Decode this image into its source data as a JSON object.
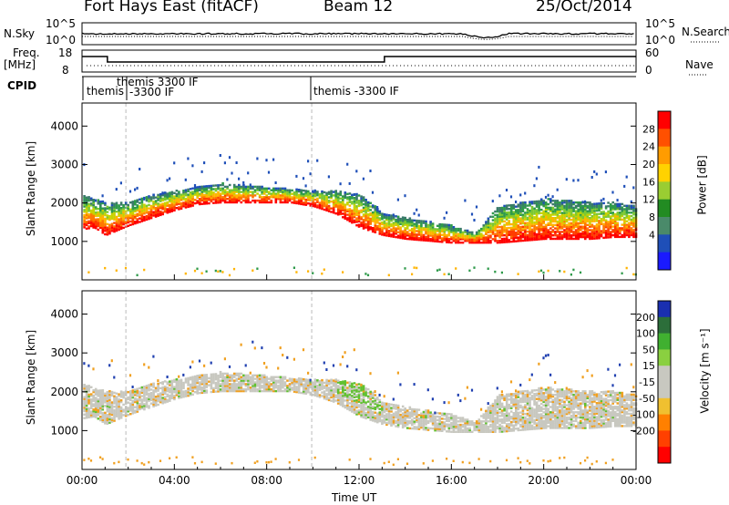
{
  "header": {
    "station": "Fort Hays East (fitACF)",
    "beam": "Beam 12",
    "date": "25/Oct/2014"
  },
  "sky_panel": {
    "left_label": "N.Sky",
    "right_label": "N.Search",
    "left_ticks": [
      "10^5",
      "10^0"
    ],
    "right_ticks": [
      "10^5",
      "10^0"
    ]
  },
  "freq_panel": {
    "left_label_1": "Freq.",
    "left_label_2": "[MHz]",
    "right_label": "Nave",
    "left_ticks": [
      "18",
      "8"
    ],
    "right_ticks": [
      "60",
      "0"
    ]
  },
  "cpid": {
    "label": "CPID",
    "segments": [
      {
        "line1": "themis",
        "line2": "",
        "start": 0.0
      },
      {
        "line1": "themis 3300 IF",
        "line2": "-3300 IF",
        "start": 1.7
      },
      {
        "line1": "themis -3300 IF",
        "line2": "",
        "start": 10.0
      }
    ]
  },
  "power_panel": {
    "ylabel": "Slant Range [km]",
    "yticks": [
      1000,
      2000,
      3000,
      4000
    ],
    "colorbar_label": "Power [dB]",
    "colorbar_ticks": [
      "28",
      "24",
      "20",
      "16",
      "12",
      "8",
      "4"
    ],
    "colorbar_colors": [
      "#ff0000",
      "#ff5000",
      "#ff9c00",
      "#ffd200",
      "#9acd32",
      "#228b22",
      "#4a8a6a",
      "#1f4fb8",
      "#1a1aff"
    ]
  },
  "velocity_panel": {
    "ylabel": "Slant Range [km]",
    "yticks": [
      1000,
      2000,
      3000,
      4000
    ],
    "colorbar_label": "Velocity [m s⁻¹]",
    "colorbar_ticks": [
      "200",
      "100",
      "50",
      "15",
      "-15",
      "-50",
      "-100",
      "-200"
    ],
    "colorbar_colors": [
      "#1a2fb0",
      "#2c6e3a",
      "#40b030",
      "#8ad040",
      "#c8c8c0",
      "#c8c8c0",
      "#f0c030",
      "#ff8000",
      "#ff4000",
      "#ff0000"
    ]
  },
  "xaxis": {
    "label": "Time UT",
    "ticks": [
      "00:00",
      "04:00",
      "08:00",
      "12:00",
      "16:00",
      "20:00",
      "00:00"
    ]
  },
  "chart_data": {
    "type": "heatmap",
    "x_unit": "hours UT",
    "xlim": [
      0,
      24
    ],
    "ylim": [
      0,
      4600
    ],
    "echo_band": {
      "hours": [
        0,
        0.5,
        1,
        2,
        3,
        4,
        5,
        6,
        7,
        8,
        9,
        10,
        11,
        12,
        12.5,
        13,
        14,
        15,
        16,
        17,
        18,
        19,
        20,
        21,
        22,
        23,
        24
      ],
      "lower_km": [
        1300,
        1350,
        1150,
        1400,
        1600,
        1800,
        1950,
        2000,
        2000,
        2000,
        2000,
        1900,
        1700,
        1350,
        1250,
        1150,
        1050,
        1000,
        950,
        950,
        950,
        1000,
        1050,
        1050,
        1050,
        1100,
        1100
      ],
      "upper_km": [
        2200,
        2100,
        2000,
        2000,
        2200,
        2300,
        2400,
        2500,
        2450,
        2400,
        2350,
        2300,
        2300,
        2200,
        2000,
        1700,
        1600,
        1500,
        1400,
        1200,
        1900,
        2000,
        2100,
        2050,
        2000,
        2000,
        1900
      ]
    }
  }
}
